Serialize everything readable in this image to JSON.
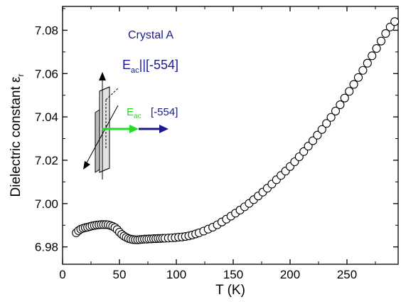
{
  "chart_data": {
    "type": "scatter",
    "title": "",
    "xlabel": "T (K)",
    "ylabel_main": "Dielectric constant ε",
    "ylabel_sub": "r",
    "xlim": [
      0,
      295
    ],
    "ylim": [
      6.972,
      7.091
    ],
    "xticks": [
      0,
      50,
      100,
      150,
      200,
      250
    ],
    "yticks": [
      6.98,
      7.0,
      7.02,
      7.04,
      7.06,
      7.08
    ],
    "ytick_labels": [
      "6.98",
      "7.00",
      "7.02",
      "7.04",
      "7.06",
      "7.08"
    ],
    "marker": "open-circle",
    "series": [
      {
        "x": [
          12,
          14,
          16,
          18,
          20,
          22,
          24,
          26,
          28,
          30,
          32,
          34,
          36,
          38,
          40,
          42,
          44,
          46,
          48,
          50,
          52,
          54,
          56,
          58,
          60,
          62,
          64,
          66,
          68,
          70,
          72,
          74,
          76,
          78,
          80,
          82,
          84,
          86,
          88,
          90,
          93,
          96,
          99,
          102,
          105,
          108,
          111,
          114,
          117,
          120,
          124,
          128,
          132,
          136,
          140,
          144,
          148,
          152,
          156,
          160,
          164,
          168,
          172,
          176,
          180,
          184,
          188,
          192,
          196,
          200,
          204,
          208,
          212,
          216,
          220,
          224,
          228,
          232,
          236,
          240,
          244,
          248,
          252,
          256,
          260,
          264,
          268,
          272,
          276,
          280,
          284,
          288,
          292
        ],
        "y": [
          6.9865,
          6.9875,
          6.9882,
          6.9886,
          6.9889,
          6.9891,
          6.9894,
          6.9897,
          6.9899,
          6.9901,
          6.9902,
          6.9903,
          6.9903,
          6.9903,
          6.9902,
          6.9899,
          6.9895,
          6.9889,
          6.988,
          6.9868,
          6.9858,
          6.985,
          6.9844,
          6.9839,
          6.9836,
          6.9834,
          6.9833,
          6.9833,
          6.9834,
          6.9835,
          6.9836,
          6.9836,
          6.9837,
          6.9837,
          6.9838,
          6.9838,
          6.9839,
          6.9839,
          6.984,
          6.984,
          6.9841,
          6.9842,
          6.9843,
          6.9845,
          6.9846,
          6.9848,
          6.9851,
          6.9855,
          6.986,
          6.9865,
          6.9873,
          6.9882,
          6.9891,
          6.9902,
          6.9915,
          6.9928,
          6.9942,
          6.9956,
          6.997,
          6.9985,
          7.0001,
          7.0018,
          7.0035,
          7.0053,
          7.0071,
          7.009,
          7.011,
          7.013,
          7.015,
          7.0171,
          7.0193,
          7.0216,
          7.024,
          7.0265,
          7.029,
          7.0316,
          7.0342,
          7.037,
          7.0398,
          7.0427,
          7.0456,
          7.0487,
          7.0518,
          7.055,
          7.0582,
          7.0615,
          7.0648,
          7.0682,
          7.0716,
          7.075,
          7.0785,
          7.0815,
          7.084
        ]
      }
    ]
  },
  "annotations": {
    "crystal_label": "Crystal A",
    "field_main": "E",
    "field_sub": "ac",
    "field_rel": "||[-554]",
    "inset_field_main": "E",
    "inset_field_sub": "ac",
    "inset_direction": "[-554]"
  },
  "colors": {
    "navy": "#1a1a8c",
    "green": "#22dd22",
    "plate": "#8c8c8c"
  }
}
